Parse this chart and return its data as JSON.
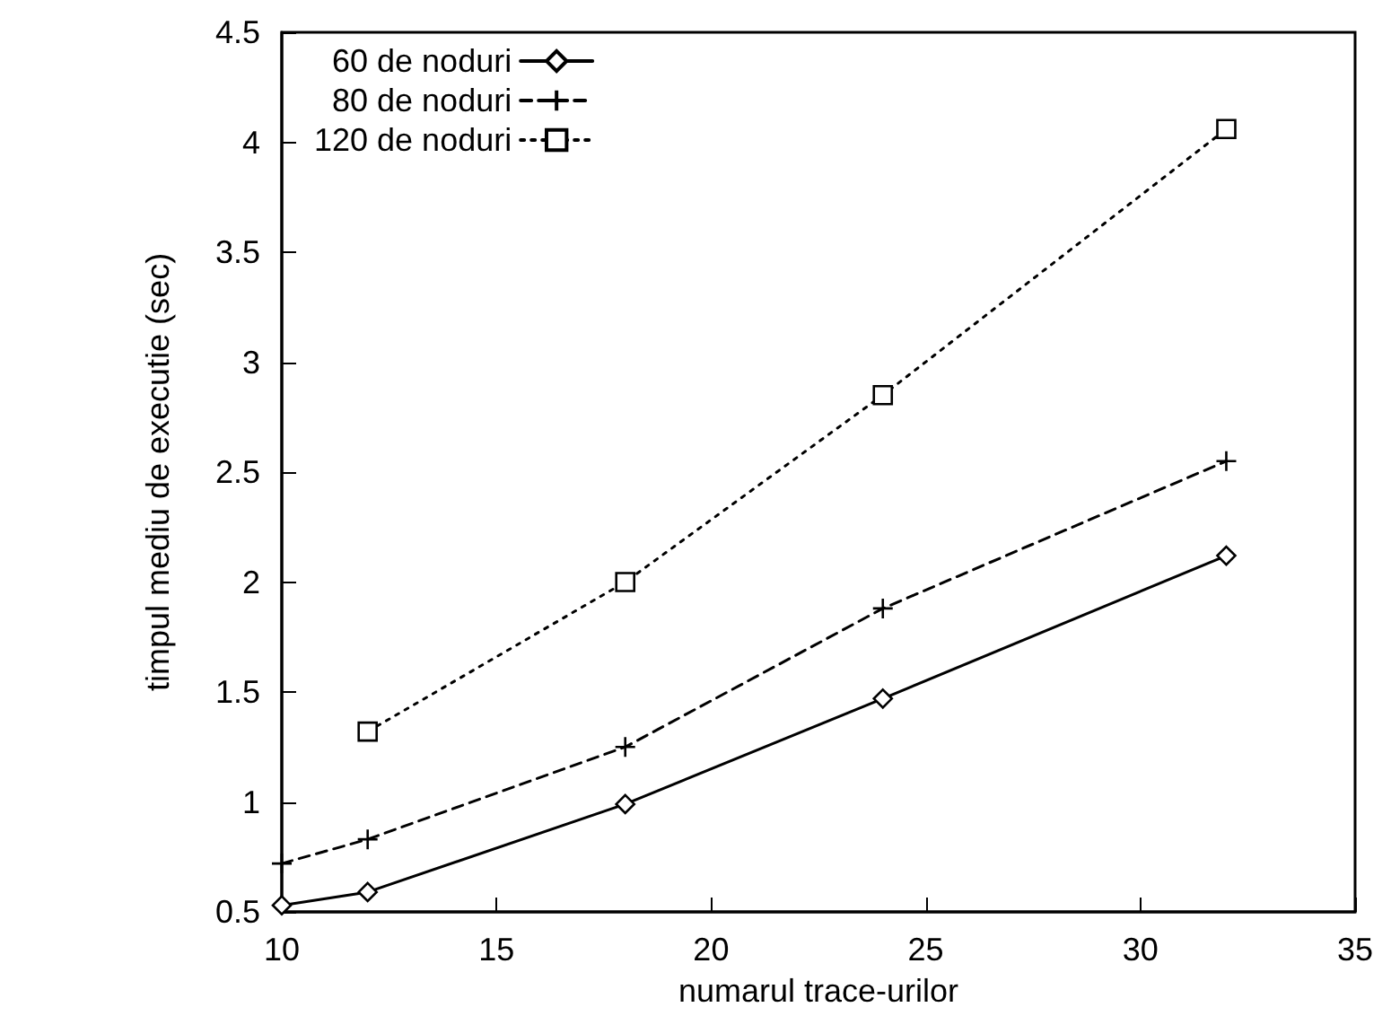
{
  "chart_data": {
    "type": "line",
    "xlabel": "numarul trace-urilor",
    "ylabel": "timpul mediu de executie (sec)",
    "xlim": [
      10,
      35
    ],
    "xticks": [
      10,
      15,
      20,
      25,
      30,
      35
    ],
    "ylim": [
      0.5,
      4.5
    ],
    "yticks": [
      0.5,
      1,
      1.5,
      2,
      2.5,
      3,
      3.5,
      4,
      4.5
    ],
    "grid": false,
    "legend": "top left",
    "series": [
      {
        "name": "60 de noduri",
        "color": "#000000",
        "marker": "diamond",
        "line_style": "solid",
        "x": [
          10,
          12,
          18,
          24,
          32
        ],
        "values": [
          0.53,
          0.59,
          0.99,
          1.47,
          2.12
        ]
      },
      {
        "name": "80 de noduri",
        "color": "#000000",
        "marker": "cross",
        "line_style": "dashed",
        "x": [
          10,
          12,
          18,
          24,
          32
        ],
        "values": [
          0.72,
          0.83,
          1.25,
          1.88,
          2.55
        ]
      },
      {
        "name": "120 de noduri",
        "color": "#000000",
        "marker": "square",
        "line_style": "dotted",
        "x": [
          12,
          18,
          24,
          32
        ],
        "values": [
          1.32,
          2.0,
          2.85,
          4.06
        ]
      }
    ]
  }
}
